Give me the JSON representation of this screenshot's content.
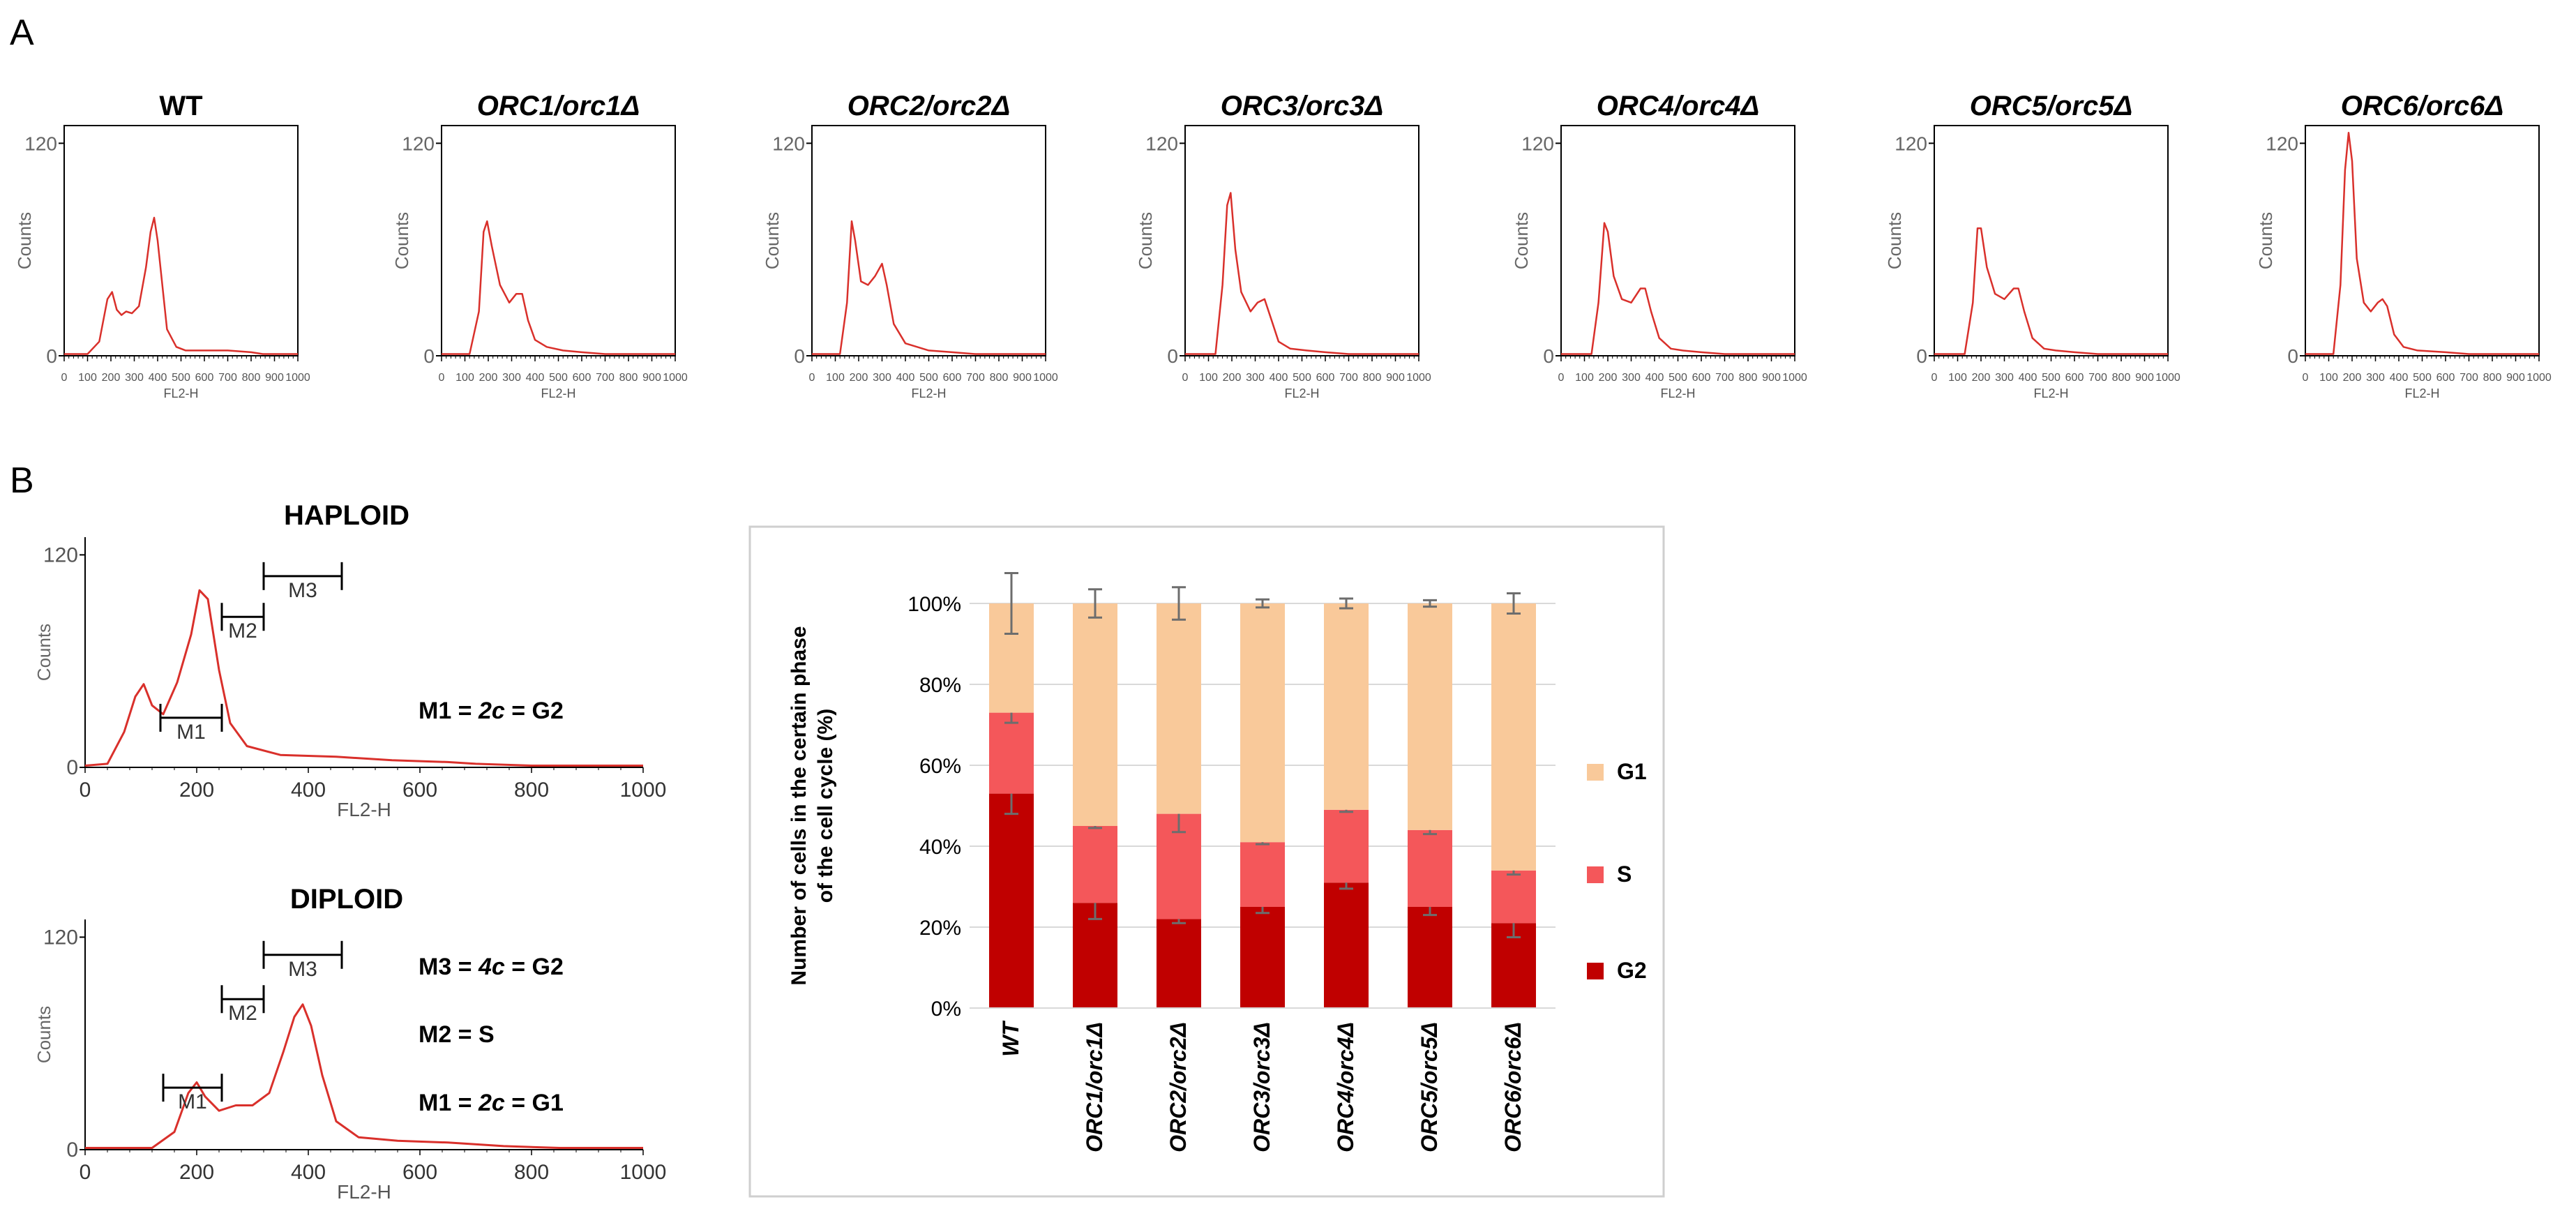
{
  "panel_labels": [
    "A",
    "B"
  ],
  "chart_data": [
    {
      "type": "line",
      "panel": "A",
      "ymax_tick": "120",
      "ymin_tick": "0",
      "ylabel": "Counts",
      "xlabel": "FL2-H",
      "xticks": [
        "0",
        "100",
        "200",
        "300",
        "400",
        "500",
        "600",
        "700",
        "800",
        "900",
        "1000"
      ],
      "xlim": [
        0,
        1000
      ],
      "ylim": [
        0,
        130
      ],
      "color": "#d9302b",
      "histograms": [
        {
          "title_parts": [
            {
              "text": "WT",
              "italic": false
            }
          ],
          "points": [
            [
              0,
              1
            ],
            [
              100,
              1
            ],
            [
              150,
              8
            ],
            [
              185,
              32
            ],
            [
              205,
              36
            ],
            [
              225,
              26
            ],
            [
              245,
              23
            ],
            [
              265,
              25
            ],
            [
              290,
              24
            ],
            [
              320,
              28
            ],
            [
              350,
              50
            ],
            [
              370,
              70
            ],
            [
              385,
              78
            ],
            [
              400,
              65
            ],
            [
              420,
              40
            ],
            [
              440,
              15
            ],
            [
              480,
              5
            ],
            [
              520,
              3
            ],
            [
              600,
              3
            ],
            [
              700,
              3
            ],
            [
              800,
              2
            ],
            [
              850,
              1
            ],
            [
              1000,
              1
            ]
          ]
        },
        {
          "title_parts": [
            {
              "text": "ORC1/orc1Δ",
              "italic": true
            }
          ],
          "points": [
            [
              0,
              1
            ],
            [
              120,
              1
            ],
            [
              160,
              25
            ],
            [
              180,
              70
            ],
            [
              195,
              76
            ],
            [
              215,
              62
            ],
            [
              250,
              40
            ],
            [
              290,
              30
            ],
            [
              320,
              35
            ],
            [
              345,
              35
            ],
            [
              370,
              20
            ],
            [
              400,
              9
            ],
            [
              450,
              5
            ],
            [
              520,
              3
            ],
            [
              600,
              2
            ],
            [
              700,
              1
            ],
            [
              1000,
              1
            ]
          ]
        },
        {
          "title_parts": [
            {
              "text": "ORC2/orc2Δ",
              "italic": true
            }
          ],
          "points": [
            [
              0,
              1
            ],
            [
              120,
              1
            ],
            [
              150,
              30
            ],
            [
              170,
              76
            ],
            [
              185,
              65
            ],
            [
              210,
              42
            ],
            [
              240,
              40
            ],
            [
              270,
              45
            ],
            [
              300,
              52
            ],
            [
              320,
              40
            ],
            [
              350,
              18
            ],
            [
              400,
              7
            ],
            [
              450,
              5
            ],
            [
              500,
              3
            ],
            [
              600,
              2
            ],
            [
              700,
              1
            ],
            [
              1000,
              1
            ]
          ]
        },
        {
          "title_parts": [
            {
              "text": "ORC3/orc3Δ",
              "italic": true
            }
          ],
          "points": [
            [
              0,
              1
            ],
            [
              130,
              1
            ],
            [
              160,
              40
            ],
            [
              180,
              85
            ],
            [
              195,
              92
            ],
            [
              215,
              60
            ],
            [
              240,
              36
            ],
            [
              280,
              25
            ],
            [
              310,
              30
            ],
            [
              340,
              32
            ],
            [
              370,
              20
            ],
            [
              400,
              8
            ],
            [
              450,
              4
            ],
            [
              520,
              3
            ],
            [
              600,
              2
            ],
            [
              700,
              1
            ],
            [
              1000,
              1
            ]
          ]
        },
        {
          "title_parts": [
            {
              "text": "ORC4/orc4Δ",
              "italic": true
            }
          ],
          "points": [
            [
              0,
              1
            ],
            [
              130,
              1
            ],
            [
              160,
              30
            ],
            [
              185,
              75
            ],
            [
              200,
              70
            ],
            [
              225,
              45
            ],
            [
              260,
              32
            ],
            [
              300,
              30
            ],
            [
              340,
              38
            ],
            [
              360,
              38
            ],
            [
              385,
              25
            ],
            [
              420,
              10
            ],
            [
              470,
              4
            ],
            [
              520,
              3
            ],
            [
              600,
              2
            ],
            [
              700,
              1
            ],
            [
              1000,
              1
            ]
          ]
        },
        {
          "title_parts": [
            {
              "text": "ORC5/orc5Δ",
              "italic": true
            }
          ],
          "points": [
            [
              0,
              1
            ],
            [
              130,
              1
            ],
            [
              165,
              30
            ],
            [
              185,
              72
            ],
            [
              200,
              72
            ],
            [
              225,
              50
            ],
            [
              260,
              35
            ],
            [
              300,
              32
            ],
            [
              340,
              38
            ],
            [
              360,
              38
            ],
            [
              385,
              25
            ],
            [
              420,
              10
            ],
            [
              470,
              4
            ],
            [
              520,
              3
            ],
            [
              600,
              2
            ],
            [
              700,
              1
            ],
            [
              1000,
              1
            ]
          ]
        },
        {
          "title_parts": [
            {
              "text": "ORC6/orc6Δ",
              "italic": true
            }
          ],
          "points": [
            [
              0,
              1
            ],
            [
              120,
              1
            ],
            [
              150,
              40
            ],
            [
              170,
              105
            ],
            [
              185,
              126
            ],
            [
              200,
              110
            ],
            [
              220,
              55
            ],
            [
              250,
              30
            ],
            [
              280,
              25
            ],
            [
              310,
              30
            ],
            [
              330,
              32
            ],
            [
              350,
              28
            ],
            [
              380,
              12
            ],
            [
              420,
              5
            ],
            [
              480,
              3
            ],
            [
              600,
              2
            ],
            [
              700,
              1
            ],
            [
              1000,
              1
            ]
          ]
        }
      ]
    },
    {
      "type": "line",
      "panel": "B",
      "title": "HAPLOID",
      "ymax_tick": "120",
      "ymin_tick": "0",
      "ylabel": "Counts",
      "xlabel": "FL2-H",
      "xticks": [
        "0",
        "200",
        "400",
        "600",
        "800",
        "1000"
      ],
      "xlim": [
        0,
        1000
      ],
      "ylim": [
        0,
        130
      ],
      "color": "#d9302b",
      "points": [
        [
          0,
          1
        ],
        [
          40,
          2
        ],
        [
          70,
          20
        ],
        [
          90,
          40
        ],
        [
          105,
          47
        ],
        [
          120,
          35
        ],
        [
          140,
          30
        ],
        [
          165,
          48
        ],
        [
          190,
          75
        ],
        [
          205,
          100
        ],
        [
          220,
          95
        ],
        [
          240,
          55
        ],
        [
          260,
          25
        ],
        [
          290,
          12
        ],
        [
          350,
          7
        ],
        [
          450,
          6
        ],
        [
          550,
          4
        ],
        [
          650,
          3
        ],
        [
          700,
          2
        ],
        [
          800,
          1
        ],
        [
          1000,
          1
        ]
      ],
      "gates": [
        {
          "label": "M1",
          "x1": 135,
          "x2": 245,
          "y": 28
        },
        {
          "label": "M2",
          "x1": 245,
          "x2": 320,
          "y": 85
        },
        {
          "label": "M3",
          "x1": 320,
          "x2": 460,
          "y": 108
        }
      ],
      "annotations": [
        [
          {
            "text": "M1 = ",
            "italic": false
          },
          {
            "text": "2c",
            "italic": true
          },
          {
            "text": " = G2",
            "italic": false
          }
        ]
      ]
    },
    {
      "type": "line",
      "panel": "B",
      "title": "DIPLOID",
      "ymax_tick": "120",
      "ymin_tick": "0",
      "ylabel": "Counts",
      "xlabel": "FL2-H",
      "xticks": [
        "0",
        "200",
        "400",
        "600",
        "800",
        "1000"
      ],
      "xlim": [
        0,
        1000
      ],
      "ylim": [
        0,
        130
      ],
      "color": "#d9302b",
      "points": [
        [
          0,
          1
        ],
        [
          120,
          1
        ],
        [
          160,
          10
        ],
        [
          185,
          32
        ],
        [
          200,
          38
        ],
        [
          215,
          30
        ],
        [
          240,
          22
        ],
        [
          270,
          25
        ],
        [
          300,
          25
        ],
        [
          330,
          32
        ],
        [
          355,
          55
        ],
        [
          375,
          75
        ],
        [
          390,
          82
        ],
        [
          405,
          70
        ],
        [
          425,
          42
        ],
        [
          450,
          16
        ],
        [
          490,
          7
        ],
        [
          560,
          5
        ],
        [
          650,
          4
        ],
        [
          750,
          2
        ],
        [
          850,
          1
        ],
        [
          1000,
          1
        ]
      ],
      "gates": [
        {
          "label": "M1",
          "x1": 140,
          "x2": 245,
          "y": 35
        },
        {
          "label": "M2",
          "x1": 245,
          "x2": 320,
          "y": 85
        },
        {
          "label": "M3",
          "x1": 320,
          "x2": 460,
          "y": 110
        }
      ],
      "annotations": [
        [
          {
            "text": "M3 = ",
            "italic": false
          },
          {
            "text": "4c",
            "italic": true
          },
          {
            "text": " = G2",
            "italic": false
          }
        ],
        [
          {
            "text": "M2 = S",
            "italic": false
          }
        ],
        [
          {
            "text": "M1 = ",
            "italic": false
          },
          {
            "text": "2c",
            "italic": true
          },
          {
            "text": " = G1",
            "italic": false
          }
        ]
      ]
    },
    {
      "type": "bar",
      "stacked": true,
      "panel": "B",
      "ylabel_lines": [
        "Number of cells in the certain phase",
        "of the cell cycle (%)"
      ],
      "yticks": [
        "0%",
        "20%",
        "40%",
        "60%",
        "80%",
        "100%"
      ],
      "ylim": [
        0,
        100
      ],
      "grid": true,
      "legend_position": "right",
      "categories": [
        "WT",
        "ORC1/orc1Δ",
        "ORC2/orc2Δ",
        "ORC3/orc3Δ",
        "ORC4/orc4Δ",
        "ORC5/orc5Δ",
        "ORC6/orc6Δ"
      ],
      "series": [
        {
          "name": "G2",
          "color": "#c00000",
          "values": [
            53,
            26,
            22,
            25,
            31,
            25,
            21
          ],
          "errors": [
            5,
            4,
            1,
            1.5,
            1.5,
            2,
            3.5
          ]
        },
        {
          "name": "S",
          "color": "#f4575a",
          "values": [
            20,
            19,
            26,
            16,
            18,
            19,
            13
          ],
          "errors": [
            2.5,
            0.5,
            4.5,
            0.5,
            0.5,
            1,
            1
          ]
        },
        {
          "name": "G1",
          "color": "#f9c99a",
          "values": [
            27,
            55,
            52,
            59,
            51,
            56,
            66
          ],
          "errors": [
            7.5,
            3.5,
            4,
            1,
            1.2,
            0.8,
            2.5
          ]
        }
      ],
      "legend_order": [
        "G1",
        "S",
        "G2"
      ]
    }
  ]
}
